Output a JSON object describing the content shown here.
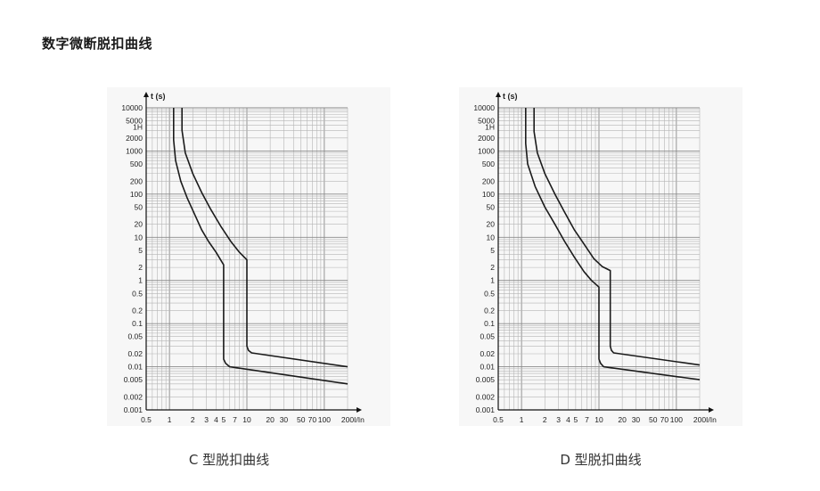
{
  "page": {
    "title": "数字微断脱扣曲线"
  },
  "chart_data": [
    {
      "type": "line",
      "caption": "C 型脱扣曲线",
      "ylabel": "t (s)",
      "xlabel": "I/In",
      "xscale": "log",
      "yscale": "log",
      "xlim": [
        0.5,
        200
      ],
      "ylim": [
        0.001,
        10000
      ],
      "xtick_labels": [
        {
          "v": 0.5,
          "t": "0.5"
        },
        {
          "v": 1,
          "t": "1"
        },
        {
          "v": 2,
          "t": "2"
        },
        {
          "v": 3,
          "t": "3"
        },
        {
          "v": 4,
          "t": "4"
        },
        {
          "v": 5,
          "t": "5"
        },
        {
          "v": 7,
          "t": "7"
        },
        {
          "v": 10,
          "t": "10"
        },
        {
          "v": 20,
          "t": "20"
        },
        {
          "v": 30,
          "t": "30"
        },
        {
          "v": 50,
          "t": "50"
        },
        {
          "v": 70,
          "t": "70"
        },
        {
          "v": 100,
          "t": "100"
        },
        {
          "v": 200,
          "t": "200"
        }
      ],
      "ytick_labels": [
        {
          "v": 10000,
          "t": "10000"
        },
        {
          "v": 5000,
          "t": "5000"
        },
        {
          "v": 3600,
          "t": "1H"
        },
        {
          "v": 2000,
          "t": "2000"
        },
        {
          "v": 1000,
          "t": "1000"
        },
        {
          "v": 500,
          "t": "500"
        },
        {
          "v": 200,
          "t": "200"
        },
        {
          "v": 100,
          "t": "100"
        },
        {
          "v": 50,
          "t": "50"
        },
        {
          "v": 20,
          "t": "20"
        },
        {
          "v": 10,
          "t": "10"
        },
        {
          "v": 5,
          "t": "5"
        },
        {
          "v": 2,
          "t": "2"
        },
        {
          "v": 1,
          "t": "1"
        },
        {
          "v": 0.5,
          "t": "0.5"
        },
        {
          "v": 0.2,
          "t": "0.2"
        },
        {
          "v": 0.1,
          "t": "0.1"
        },
        {
          "v": 0.05,
          "t": "0.05"
        },
        {
          "v": 0.02,
          "t": "0.02"
        },
        {
          "v": 0.01,
          "t": "0.01"
        },
        {
          "v": 0.005,
          "t": "0.005"
        },
        {
          "v": 0.002,
          "t": "0.002"
        },
        {
          "v": 0.001,
          "t": "0.001"
        }
      ],
      "series": [
        {
          "x": [
            1.13,
            1.13,
            1.2,
            1.4,
            1.7,
            2.1,
            2.6,
            3.2,
            4.0,
            5.0,
            5.0,
            5.3,
            6.0,
            200
          ],
          "y": [
            10000,
            1800,
            600,
            200,
            80,
            35,
            15,
            8,
            4.5,
            2.3,
            0.015,
            0.012,
            0.01,
            0.004
          ]
        },
        {
          "x": [
            1.45,
            1.45,
            1.6,
            2.0,
            2.6,
            3.4,
            4.6,
            6.2,
            8.0,
            10.0,
            10.0,
            10.5,
            11.5,
            200
          ],
          "y": [
            10000,
            3000,
            900,
            300,
            110,
            45,
            18,
            8,
            4.5,
            3.0,
            0.03,
            0.024,
            0.021,
            0.01
          ]
        }
      ]
    },
    {
      "type": "line",
      "caption": "D 型脱扣曲线",
      "ylabel": "t (s)",
      "xlabel": "I/In",
      "xscale": "log",
      "yscale": "log",
      "xlim": [
        0.5,
        200
      ],
      "ylim": [
        0.001,
        10000
      ],
      "xtick_labels": [
        {
          "v": 0.5,
          "t": "0.5"
        },
        {
          "v": 1,
          "t": "1"
        },
        {
          "v": 2,
          "t": "2"
        },
        {
          "v": 3,
          "t": "3"
        },
        {
          "v": 4,
          "t": "4"
        },
        {
          "v": 5,
          "t": "5"
        },
        {
          "v": 7,
          "t": "7"
        },
        {
          "v": 10,
          "t": "10"
        },
        {
          "v": 20,
          "t": "20"
        },
        {
          "v": 30,
          "t": "30"
        },
        {
          "v": 50,
          "t": "50"
        },
        {
          "v": 70,
          "t": "70"
        },
        {
          "v": 100,
          "t": "100"
        },
        {
          "v": 200,
          "t": "200"
        }
      ],
      "ytick_labels": [
        {
          "v": 10000,
          "t": "10000"
        },
        {
          "v": 5000,
          "t": "5000"
        },
        {
          "v": 3600,
          "t": "1H"
        },
        {
          "v": 2000,
          "t": "2000"
        },
        {
          "v": 1000,
          "t": "1000"
        },
        {
          "v": 500,
          "t": "500"
        },
        {
          "v": 200,
          "t": "200"
        },
        {
          "v": 100,
          "t": "100"
        },
        {
          "v": 50,
          "t": "50"
        },
        {
          "v": 20,
          "t": "20"
        },
        {
          "v": 10,
          "t": "10"
        },
        {
          "v": 5,
          "t": "5"
        },
        {
          "v": 2,
          "t": "2"
        },
        {
          "v": 1,
          "t": "1"
        },
        {
          "v": 0.5,
          "t": "0.5"
        },
        {
          "v": 0.2,
          "t": "0.2"
        },
        {
          "v": 0.1,
          "t": "0.1"
        },
        {
          "v": 0.05,
          "t": "0.05"
        },
        {
          "v": 0.02,
          "t": "0.02"
        },
        {
          "v": 0.01,
          "t": "0.01"
        },
        {
          "v": 0.005,
          "t": "0.005"
        },
        {
          "v": 0.002,
          "t": "0.002"
        },
        {
          "v": 0.001,
          "t": "0.001"
        }
      ],
      "series": [
        {
          "x": [
            1.13,
            1.13,
            1.2,
            1.5,
            2.0,
            2.7,
            3.6,
            4.8,
            6.4,
            8.0,
            10.0,
            10.0,
            10.5,
            11.5,
            200
          ],
          "y": [
            10000,
            1500,
            500,
            150,
            50,
            20,
            8,
            3.5,
            1.6,
            1.0,
            0.7,
            0.015,
            0.012,
            0.01,
            0.005
          ]
        },
        {
          "x": [
            1.45,
            1.45,
            1.6,
            2.0,
            2.7,
            3.6,
            4.8,
            6.4,
            8.6,
            11.0,
            14.0,
            14.0,
            14.5,
            15.5,
            200
          ],
          "y": [
            10000,
            2800,
            900,
            300,
            100,
            38,
            15,
            7,
            3.2,
            2.1,
            1.7,
            0.03,
            0.024,
            0.021,
            0.011
          ]
        }
      ]
    }
  ]
}
